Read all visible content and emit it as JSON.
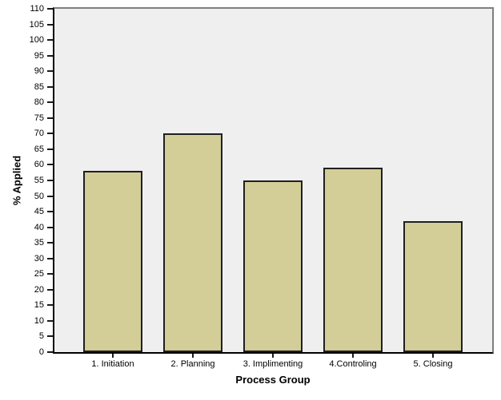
{
  "chart_data": {
    "type": "bar",
    "title": "",
    "categories": [
      "1. Initiation",
      "2. Planning",
      "3. Implimenting",
      "4.Controling",
      "5. Closing"
    ],
    "values": [
      58,
      70,
      55,
      59,
      42
    ],
    "xlabel": "Process Group",
    "ylabel": "% Applied",
    "ylim": [
      0,
      110
    ],
    "yticks": [
      0,
      5,
      10,
      15,
      20,
      25,
      30,
      35,
      40,
      45,
      50,
      55,
      60,
      65,
      70,
      75,
      80,
      85,
      90,
      95,
      100,
      105,
      110
    ],
    "grid": false,
    "legend": "none",
    "colors": {
      "bar_fill": "#d3cd97",
      "bar_border": "#1f1f1f",
      "plot_background": "#efefef",
      "frame_gray": "#7f7f7f",
      "axis_black": "#000000",
      "page_background": "#ffffff"
    }
  }
}
